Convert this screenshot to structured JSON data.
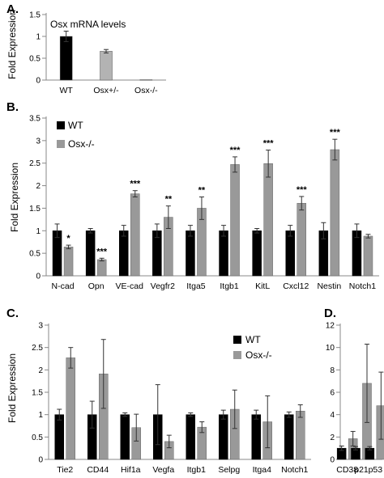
{
  "colors": {
    "wt": "#000000",
    "ko": "#999999",
    "het": "#b3b3b3",
    "axis": "#888888"
  },
  "chart_data": [
    {
      "panel": "A.",
      "type": "bar",
      "title": "Osx mRNA levels",
      "ylabel": "Fold Expression",
      "ylim": [
        0,
        1.5
      ],
      "yticks": [
        0,
        0.5,
        1,
        1.5
      ],
      "categories": [
        "WT",
        "Osx+/-",
        "Osx-/-"
      ],
      "values": [
        1.0,
        0.66,
        0.01
      ],
      "errors": [
        0.12,
        0.04,
        0.0
      ],
      "bar_colors": [
        "#000000",
        "#b3b3b3",
        "#999999"
      ]
    },
    {
      "panel": "B.",
      "type": "bar",
      "title": "",
      "ylabel": "Fold Expression",
      "ylim": [
        0,
        3.5
      ],
      "yticks": [
        0,
        0.5,
        1,
        1.5,
        2,
        2.5,
        3,
        3.5
      ],
      "categories": [
        "N-cad",
        "Opn",
        "VE-cad",
        "Vegfr2",
        "Itga5",
        "Itgb1",
        "KitL",
        "Cxcl12",
        "Nestin",
        "Notch1"
      ],
      "series": [
        {
          "name": "WT",
          "values": [
            1,
            1,
            1,
            1,
            1,
            1,
            1,
            1,
            1,
            1
          ],
          "errors": [
            0.15,
            0.05,
            0.12,
            0.15,
            0.12,
            0.12,
            0.05,
            0.12,
            0.18,
            0.15
          ]
        },
        {
          "name": "Osx-/-",
          "values": [
            0.64,
            0.36,
            1.82,
            1.3,
            1.5,
            2.47,
            2.49,
            1.61,
            2.8,
            0.88
          ],
          "errors": [
            0.04,
            0.03,
            0.07,
            0.25,
            0.25,
            0.17,
            0.3,
            0.15,
            0.23,
            0.04
          ]
        }
      ],
      "significance": [
        "*",
        "***",
        "***",
        "**",
        "**",
        "***",
        "***",
        "***",
        "***",
        ""
      ],
      "legend": {
        "position": "top-left",
        "entries": [
          "WT",
          "Osx-/-"
        ]
      }
    },
    {
      "panel": "C.",
      "type": "bar",
      "title": "",
      "ylabel": "Fold Expression",
      "ylim": [
        0,
        3
      ],
      "yticks": [
        0,
        0.5,
        1,
        1.5,
        2,
        2.5,
        3
      ],
      "categories": [
        "Tie2",
        "CD44",
        "Hif1a",
        "Vegfa",
        "Itgb1",
        "Selpg",
        "Itga4",
        "Notch1"
      ],
      "series": [
        {
          "name": "WT",
          "values": [
            1,
            1,
            1,
            1,
            1,
            1,
            1,
            1
          ],
          "errors": [
            0.12,
            0.3,
            0.04,
            0.67,
            0.04,
            0.1,
            0.1,
            0.06
          ]
        },
        {
          "name": "Osx-/-",
          "values": [
            2.27,
            1.91,
            0.71,
            0.4,
            0.72,
            1.12,
            0.84,
            1.08
          ],
          "errors": [
            0.23,
            0.77,
            0.3,
            0.14,
            0.12,
            0.43,
            0.58,
            0.14
          ]
        }
      ],
      "legend": {
        "position": "top-right",
        "entries": [
          "WT",
          "Osx-/-"
        ]
      }
    },
    {
      "panel": "D.",
      "type": "bar",
      "title": "",
      "ylabel": "",
      "ylim": [
        0,
        12
      ],
      "yticks": [
        0,
        2,
        4,
        6,
        8,
        10,
        12
      ],
      "categories": [
        "CD38",
        "p21",
        "p53"
      ],
      "series": [
        {
          "name": "WT",
          "values": [
            1.0,
            1.0,
            1.0
          ],
          "errors": [
            0.2,
            0.15,
            0.15
          ]
        },
        {
          "name": "Osx-/-",
          "values": [
            1.85,
            6.8,
            4.8
          ],
          "errors": [
            0.65,
            3.5,
            3.0
          ]
        }
      ]
    }
  ]
}
